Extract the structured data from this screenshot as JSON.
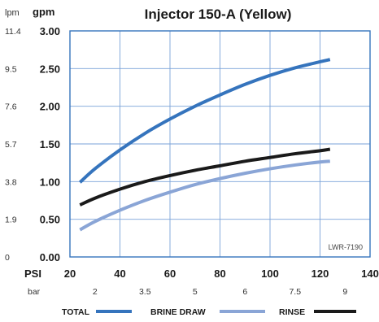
{
  "chart_data": {
    "type": "line",
    "title": "Injector 150-A (Yellow)",
    "left_unit_label": "lpm",
    "right_unit_label": "gpm",
    "x_unit_label": "PSI",
    "x_secondary_unit_label": "bar",
    "annotation": "LWR-7190",
    "xlim": [
      20,
      140
    ],
    "ylim": [
      0,
      3
    ],
    "x_ticks": [
      "20",
      "40",
      "60",
      "80",
      "100",
      "120",
      "140"
    ],
    "y_ticks": [
      "0.00",
      "0.50",
      "1.00",
      "1.50",
      "2.00",
      "2.50",
      "3.00"
    ],
    "lpm_ticks": [
      "0",
      "1.9",
      "3.8",
      "5.7",
      "7.6",
      "9.5",
      "11.4"
    ],
    "bar_ticks": [
      "2",
      "3.5",
      "5",
      "6",
      "7.5",
      "9"
    ],
    "grid": true,
    "legend_position": "bottom",
    "series": [
      {
        "name": "TOTAL",
        "color": "#3574bd",
        "x": [
          24,
          30,
          40,
          50,
          60,
          70,
          80,
          90,
          100,
          110,
          120,
          124
        ],
        "y": [
          0.99,
          1.17,
          1.42,
          1.64,
          1.83,
          2.0,
          2.15,
          2.29,
          2.41,
          2.51,
          2.59,
          2.62
        ]
      },
      {
        "name": "BRINE DRAW",
        "color": "#8aa5d6",
        "x": [
          24,
          30,
          40,
          50,
          60,
          70,
          80,
          90,
          100,
          110,
          120,
          124
        ],
        "y": [
          0.36,
          0.47,
          0.62,
          0.75,
          0.86,
          0.96,
          1.04,
          1.11,
          1.17,
          1.22,
          1.26,
          1.27
        ]
      },
      {
        "name": "RINSE",
        "color": "#1a1a1a",
        "x": [
          24,
          30,
          40,
          50,
          60,
          70,
          80,
          90,
          100,
          110,
          120,
          124
        ],
        "y": [
          0.69,
          0.78,
          0.9,
          1.0,
          1.08,
          1.15,
          1.21,
          1.27,
          1.32,
          1.37,
          1.41,
          1.43
        ]
      }
    ]
  }
}
